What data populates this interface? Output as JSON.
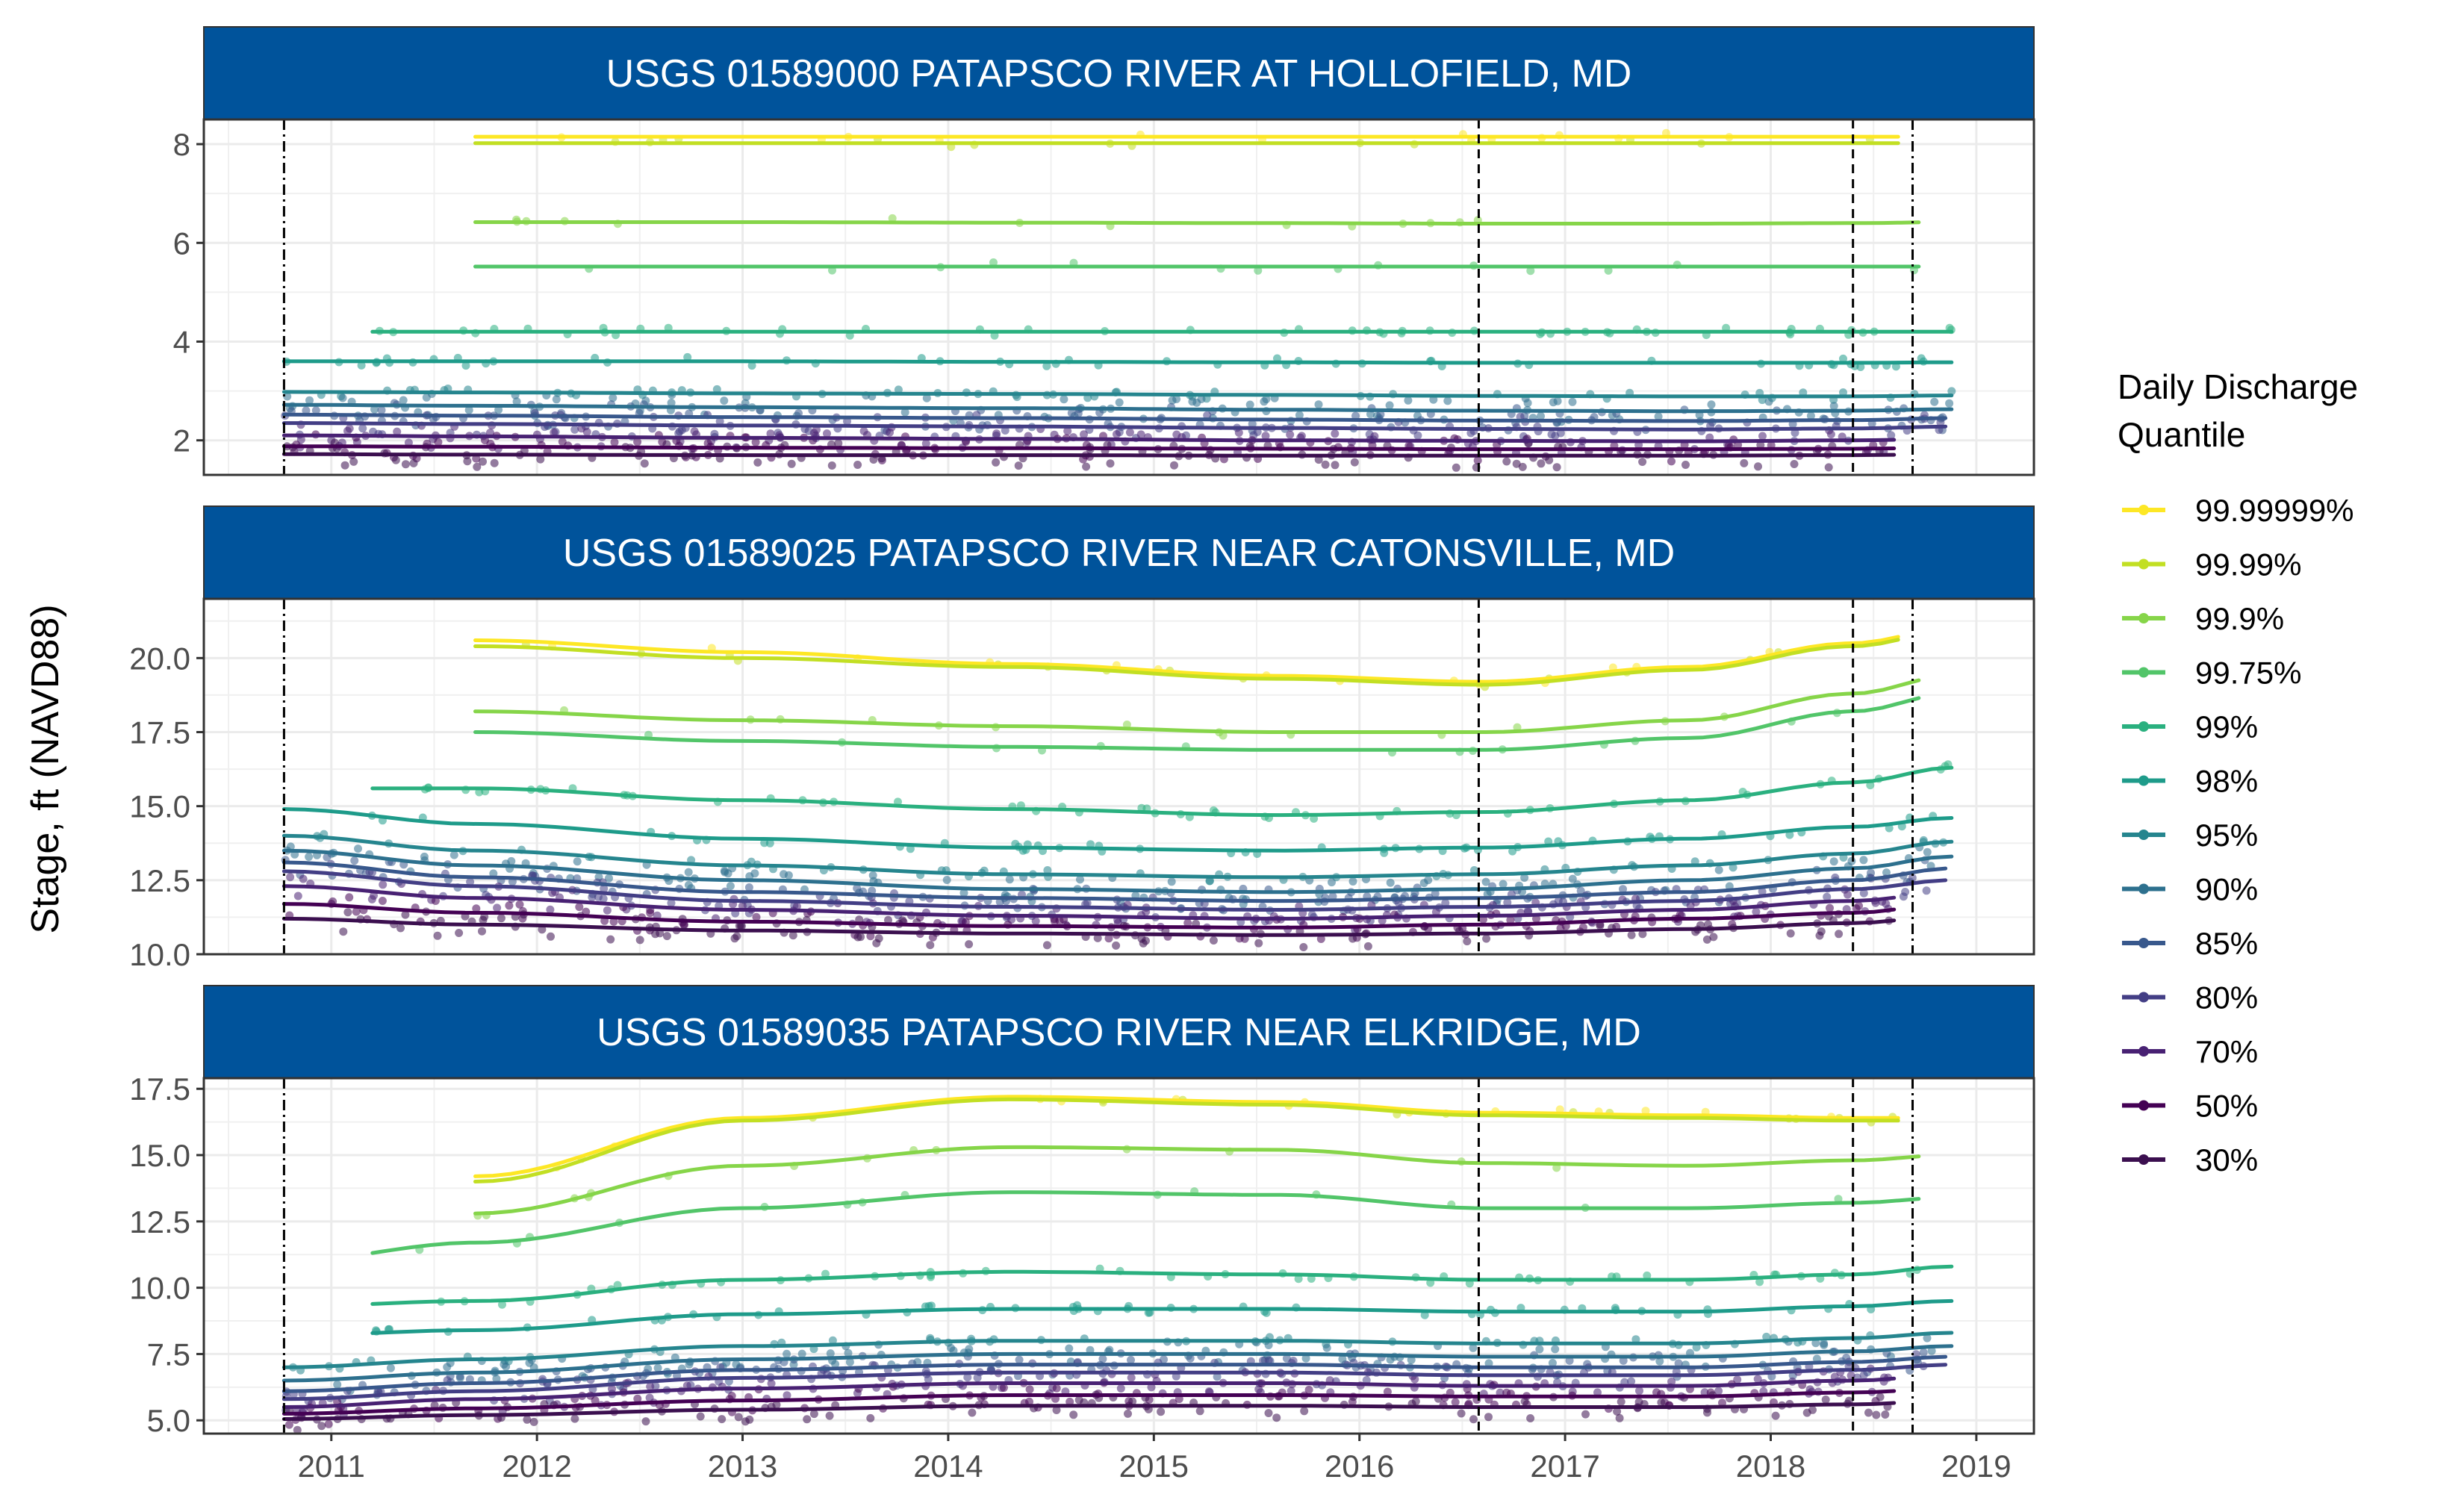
{
  "figure": {
    "ylabel": "Stage, ft (NAVD88)",
    "legend": {
      "title_line1": "Daily Discharge",
      "title_line2": "Quantile",
      "placement": "right",
      "entries": [
        {
          "label": "99.99999%",
          "color": "#FDE725"
        },
        {
          "label": "99.99%",
          "color": "#C2DF23"
        },
        {
          "label": "99.9%",
          "color": "#86D549"
        },
        {
          "label": "99.75%",
          "color": "#52C569"
        },
        {
          "label": "99%",
          "color": "#2AB07F"
        },
        {
          "label": "98%",
          "color": "#1E9B8A"
        },
        {
          "label": "95%",
          "color": "#25858E"
        },
        {
          "label": "90%",
          "color": "#2D708E"
        },
        {
          "label": "85%",
          "color": "#38588C"
        },
        {
          "label": "80%",
          "color": "#433E85"
        },
        {
          "label": "70%",
          "color": "#482173"
        },
        {
          "label": "50%",
          "color": "#440154"
        },
        {
          "label": "30%",
          "color": "#3B0F4F"
        }
      ]
    },
    "x_ticks": [
      "2011",
      "2012",
      "2013",
      "2014",
      "2015",
      "2016",
      "2017",
      "2018",
      "2019"
    ],
    "header_color": "#00539B"
  },
  "chart_data": [
    {
      "type": "line",
      "title": "USGS 01589000 PATAPSCO RIVER AT HOLLOFIELD, MD",
      "xlim": [
        2010.38,
        2019.28
      ],
      "ylim": [
        1.3,
        8.5
      ],
      "y_ticks": [
        "2",
        "4",
        "6",
        "8"
      ],
      "y_tick_values": [
        2,
        4,
        6,
        8
      ],
      "vlines": [
        {
          "x": 2010.77,
          "style": "dotdash"
        },
        {
          "x": 2016.58,
          "style": "dashed"
        },
        {
          "x": 2018.4,
          "style": "dashed"
        },
        {
          "x": 2018.69,
          "style": "dotdash"
        }
      ],
      "x_knots": [
        2010.77,
        2011.7,
        2013.0,
        2014.3,
        2015.6,
        2016.6,
        2017.6,
        2018.4,
        2018.88
      ],
      "series": [
        {
          "name": "99.99999%",
          "start": 2011.7,
          "end": 2018.62,
          "y": [
            8.15,
            8.15,
            8.15,
            8.15,
            8.15,
            8.15,
            8.15,
            8.15,
            8.15
          ]
        },
        {
          "name": "99.99%",
          "start": 2011.7,
          "end": 2018.62,
          "y": [
            8.02,
            8.02,
            8.02,
            8.02,
            8.02,
            8.02,
            8.02,
            8.02,
            8.02
          ]
        },
        {
          "name": "99.9%",
          "start": 2011.7,
          "end": 2018.72,
          "y": [
            6.42,
            6.42,
            6.42,
            6.41,
            6.4,
            6.39,
            6.39,
            6.4,
            6.42
          ]
        },
        {
          "name": "99.75%",
          "start": 2011.7,
          "end": 2018.72,
          "y": [
            5.52,
            5.52,
            5.52,
            5.52,
            5.52,
            5.52,
            5.52,
            5.52,
            5.52
          ]
        },
        {
          "name": "99%",
          "start": 2011.2,
          "end": 2018.88,
          "y": [
            4.2,
            4.2,
            4.2,
            4.2,
            4.2,
            4.2,
            4.2,
            4.2,
            4.2
          ]
        },
        {
          "name": "98%",
          "start": 2010.77,
          "end": 2018.88,
          "y": [
            3.6,
            3.6,
            3.6,
            3.59,
            3.58,
            3.57,
            3.57,
            3.57,
            3.58
          ]
        },
        {
          "name": "95%",
          "start": 2010.77,
          "end": 2018.88,
          "y": [
            2.98,
            2.97,
            2.95,
            2.94,
            2.92,
            2.9,
            2.89,
            2.89,
            2.91
          ]
        },
        {
          "name": "90%",
          "start": 2010.77,
          "end": 2018.88,
          "y": [
            2.72,
            2.7,
            2.67,
            2.65,
            2.62,
            2.6,
            2.59,
            2.6,
            2.63
          ]
        },
        {
          "name": "85%",
          "start": 2010.77,
          "end": 2018.85,
          "y": [
            2.52,
            2.5,
            2.47,
            2.45,
            2.42,
            2.4,
            2.39,
            2.41,
            2.45
          ]
        },
        {
          "name": "80%",
          "start": 2010.77,
          "end": 2018.85,
          "y": [
            2.35,
            2.33,
            2.3,
            2.28,
            2.25,
            2.23,
            2.22,
            2.24,
            2.28
          ]
        },
        {
          "name": "70%",
          "start": 2010.77,
          "end": 2018.6,
          "y": [
            2.1,
            2.08,
            2.05,
            2.03,
            2.0,
            1.99,
            1.98,
            2.0,
            2.03
          ]
        },
        {
          "name": "50%",
          "start": 2010.77,
          "end": 2018.6,
          "y": [
            1.88,
            1.87,
            1.85,
            1.84,
            1.83,
            1.82,
            1.82,
            1.83,
            1.85
          ]
        },
        {
          "name": "30%",
          "start": 2010.77,
          "end": 2018.6,
          "y": [
            1.72,
            1.71,
            1.7,
            1.7,
            1.69,
            1.69,
            1.69,
            1.7,
            1.72
          ]
        }
      ]
    },
    {
      "type": "line",
      "title": "USGS 01589025 PATAPSCO RIVER NEAR CATONSVILLE, MD",
      "xlim": [
        2010.38,
        2019.28
      ],
      "ylim": [
        10.0,
        22.0
      ],
      "y_ticks": [
        "10.0",
        "12.5",
        "15.0",
        "17.5",
        "20.0"
      ],
      "y_tick_values": [
        10.0,
        12.5,
        15.0,
        17.5,
        20.0
      ],
      "vlines": [
        {
          "x": 2010.77,
          "style": "dotdash"
        },
        {
          "x": 2016.58,
          "style": "dashed"
        },
        {
          "x": 2018.4,
          "style": "dashed"
        },
        {
          "x": 2018.69,
          "style": "dotdash"
        }
      ],
      "x_knots": [
        2010.77,
        2011.7,
        2013.0,
        2014.3,
        2015.6,
        2016.6,
        2017.6,
        2018.4,
        2018.88
      ],
      "series": [
        {
          "name": "99.99999%",
          "start": 2011.7,
          "end": 2018.62,
          "y": [
            20.6,
            20.6,
            20.2,
            19.8,
            19.4,
            19.2,
            19.7,
            20.5,
            21.0
          ]
        },
        {
          "name": "99.99%",
          "start": 2011.7,
          "end": 2018.62,
          "y": [
            20.4,
            20.4,
            20.0,
            19.7,
            19.3,
            19.1,
            19.6,
            20.4,
            20.9
          ]
        },
        {
          "name": "99.9%",
          "start": 2011.7,
          "end": 2018.72,
          "y": [
            18.2,
            18.2,
            17.9,
            17.7,
            17.5,
            17.5,
            17.9,
            18.8,
            19.4
          ]
        },
        {
          "name": "99.75%",
          "start": 2011.7,
          "end": 2018.72,
          "y": [
            17.5,
            17.5,
            17.2,
            17.0,
            16.9,
            16.9,
            17.3,
            18.2,
            18.8
          ]
        },
        {
          "name": "99%",
          "start": 2011.2,
          "end": 2018.88,
          "y": [
            15.6,
            15.6,
            15.2,
            14.9,
            14.7,
            14.8,
            15.2,
            15.8,
            16.3
          ]
        },
        {
          "name": "98%",
          "start": 2010.77,
          "end": 2018.88,
          "y": [
            14.9,
            14.4,
            13.9,
            13.6,
            13.5,
            13.6,
            13.9,
            14.3,
            14.6
          ]
        },
        {
          "name": "95%",
          "start": 2010.77,
          "end": 2018.88,
          "y": [
            14.0,
            13.5,
            13.0,
            12.7,
            12.6,
            12.7,
            13.0,
            13.4,
            13.8
          ]
        },
        {
          "name": "90%",
          "start": 2010.77,
          "end": 2018.88,
          "y": [
            13.5,
            13.0,
            12.5,
            12.2,
            12.1,
            12.2,
            12.5,
            12.9,
            13.3
          ]
        },
        {
          "name": "85%",
          "start": 2010.77,
          "end": 2018.85,
          "y": [
            13.1,
            12.6,
            12.1,
            11.9,
            11.8,
            11.9,
            12.1,
            12.5,
            12.9
          ]
        },
        {
          "name": "80%",
          "start": 2010.77,
          "end": 2018.85,
          "y": [
            12.8,
            12.3,
            11.8,
            11.6,
            11.5,
            11.6,
            11.8,
            12.2,
            12.5
          ]
        },
        {
          "name": "70%",
          "start": 2010.77,
          "end": 2018.6,
          "y": [
            12.3,
            11.9,
            11.5,
            11.3,
            11.2,
            11.3,
            11.5,
            11.8,
            12.1
          ]
        },
        {
          "name": "50%",
          "start": 2010.77,
          "end": 2018.6,
          "y": [
            11.7,
            11.4,
            11.1,
            10.95,
            10.9,
            11.0,
            11.2,
            11.4,
            11.7
          ]
        },
        {
          "name": "30%",
          "start": 2010.77,
          "end": 2018.6,
          "y": [
            11.2,
            11.0,
            10.8,
            10.7,
            10.65,
            10.7,
            10.85,
            11.05,
            11.3
          ]
        }
      ]
    },
    {
      "type": "line",
      "title": "USGS 01589035 PATAPSCO RIVER NEAR ELKRIDGE, MD",
      "xlim": [
        2010.38,
        2019.28
      ],
      "ylim": [
        4.5,
        17.9
      ],
      "y_ticks": [
        "5.0",
        "7.5",
        "10.0",
        "12.5",
        "15.0",
        "17.5"
      ],
      "y_tick_values": [
        5.0,
        7.5,
        10.0,
        12.5,
        15.0,
        17.5
      ],
      "vlines": [
        {
          "x": 2010.77,
          "style": "dotdash"
        },
        {
          "x": 2016.58,
          "style": "dashed"
        },
        {
          "x": 2018.4,
          "style": "dashed"
        },
        {
          "x": 2018.69,
          "style": "dotdash"
        }
      ],
      "x_knots": [
        2010.77,
        2011.7,
        2013.0,
        2014.3,
        2015.6,
        2016.6,
        2017.6,
        2018.4,
        2018.88
      ],
      "series": [
        {
          "name": "99.99999%",
          "start": 2011.7,
          "end": 2018.62,
          "y": [
            14.2,
            14.2,
            16.4,
            17.2,
            17.0,
            16.6,
            16.5,
            16.4,
            16.4
          ]
        },
        {
          "name": "99.99%",
          "start": 2011.7,
          "end": 2018.62,
          "y": [
            14.0,
            14.0,
            16.3,
            17.1,
            16.9,
            16.5,
            16.4,
            16.3,
            16.3
          ]
        },
        {
          "name": "99.9%",
          "start": 2011.7,
          "end": 2018.72,
          "y": [
            12.8,
            12.8,
            14.6,
            15.3,
            15.2,
            14.7,
            14.6,
            14.8,
            15.0
          ]
        },
        {
          "name": "99.75%",
          "start": 2011.2,
          "end": 2018.72,
          "y": [
            11.0,
            11.7,
            13.0,
            13.6,
            13.5,
            13.0,
            13.0,
            13.2,
            13.4
          ]
        },
        {
          "name": "99%",
          "start": 2011.2,
          "end": 2018.88,
          "y": [
            9.3,
            9.5,
            10.3,
            10.6,
            10.5,
            10.3,
            10.3,
            10.5,
            10.8
          ]
        },
        {
          "name": "98%",
          "start": 2011.2,
          "end": 2018.88,
          "y": [
            8.2,
            8.4,
            9.0,
            9.2,
            9.2,
            9.1,
            9.1,
            9.3,
            9.5
          ]
        },
        {
          "name": "95%",
          "start": 2010.77,
          "end": 2018.88,
          "y": [
            7.0,
            7.3,
            7.8,
            8.0,
            8.0,
            7.9,
            7.9,
            8.1,
            8.3
          ]
        },
        {
          "name": "90%",
          "start": 2010.77,
          "end": 2018.88,
          "y": [
            6.5,
            6.8,
            7.3,
            7.5,
            7.5,
            7.4,
            7.4,
            7.6,
            7.8
          ]
        },
        {
          "name": "85%",
          "start": 2010.77,
          "end": 2018.85,
          "y": [
            6.1,
            6.4,
            6.9,
            7.1,
            7.1,
            7.0,
            7.0,
            7.2,
            7.4
          ]
        },
        {
          "name": "80%",
          "start": 2010.77,
          "end": 2018.85,
          "y": [
            5.8,
            6.1,
            6.6,
            6.8,
            6.8,
            6.7,
            6.7,
            6.9,
            7.1
          ]
        },
        {
          "name": "70%",
          "start": 2010.77,
          "end": 2018.6,
          "y": [
            5.5,
            5.8,
            6.2,
            6.4,
            6.4,
            6.3,
            6.3,
            6.5,
            6.7
          ]
        },
        {
          "name": "50%",
          "start": 2010.77,
          "end": 2018.6,
          "y": [
            5.25,
            5.45,
            5.75,
            5.95,
            5.95,
            5.9,
            5.9,
            6.05,
            6.2
          ]
        },
        {
          "name": "30%",
          "start": 2010.77,
          "end": 2018.6,
          "y": [
            5.05,
            5.2,
            5.4,
            5.55,
            5.55,
            5.5,
            5.5,
            5.6,
            5.75
          ]
        }
      ]
    }
  ]
}
